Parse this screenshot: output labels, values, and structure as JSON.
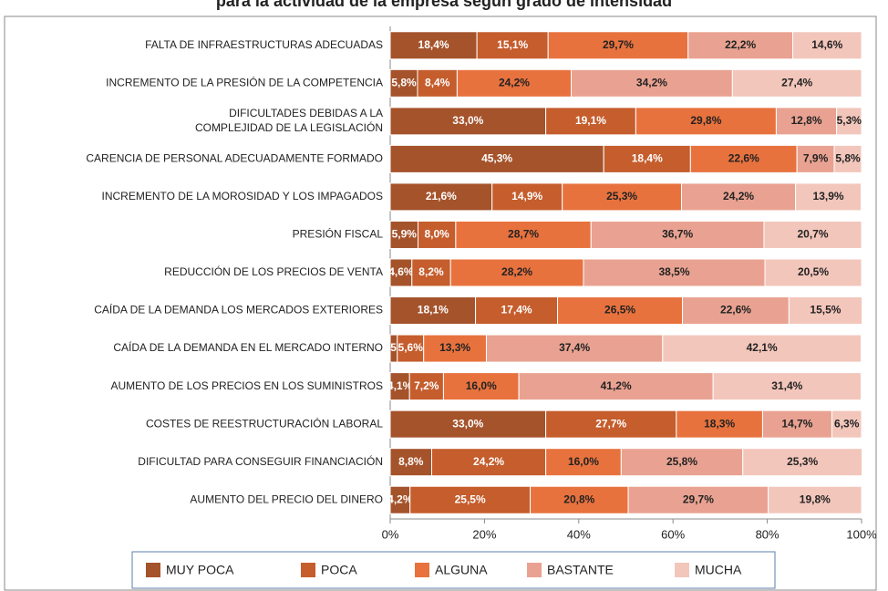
{
  "chart_data": {
    "type": "stacked-bar-horizontal",
    "title": "para la actividad de la empresa según grado de intensidad",
    "categories": [
      "FALTA DE INFRAESTRUCTURAS ADECUADAS",
      "INCREMENTO DE LA PRESIÓN DE LA COMPETENCIA",
      "DIFICULTADES DEBIDAS A LA\nCOMPLEJIDAD DE LA LEGISLACIÓN",
      "CARENCIA DE PERSONAL ADECUADAMENTE FORMADO",
      "INCREMENTO DE LA MOROSIDAD Y LOS IMPAGADOS",
      "PRESIÓN FISCAL",
      "REDUCCIÓN DE LOS PRECIOS DE VENTA",
      "CAÍDA DE LA DEMANDA LOS MERCADOS EXTERIORES",
      "CAÍDA DE LA DEMANDA EN EL MERCADO INTERNO",
      "AUMENTO DE LOS PRECIOS EN LOS SUMINISTROS",
      "COSTES DE REESTRUCTURACIÓN LABORAL",
      "DIFICULTAD PARA CONSEGUIR FINANCIACIÓN",
      "AUMENTO DEL PRECIO DEL DINERO"
    ],
    "series": [
      {
        "name": "MUY POCA",
        "color": "#A5532B",
        "label_color": "#ffffff",
        "values": [
          18.4,
          5.8,
          33.0,
          45.3,
          21.6,
          5.9,
          4.6,
          18.1,
          1.5,
          4.1,
          33.0,
          8.8,
          4.2
        ],
        "value_labels": [
          "18,4%",
          "5,8%",
          "33,0%",
          "45,3%",
          "21,6%",
          "5,9%",
          "4,6%",
          "18,1%",
          "1,5%",
          "4,1%",
          "33,0%",
          "8,8%",
          "4,2%"
        ]
      },
      {
        "name": "POCA",
        "color": "#C55D2D",
        "label_color": "#ffffff",
        "values": [
          15.1,
          8.4,
          19.1,
          18.4,
          14.9,
          8.0,
          8.2,
          17.4,
          5.6,
          7.2,
          27.7,
          24.2,
          25.5
        ],
        "value_labels": [
          "15,1%",
          "8,4%",
          "19,1%",
          "18,4%",
          "14,9%",
          "8,0%",
          "8,2%",
          "17,4%",
          "5,6%",
          "7,2%",
          "27,7%",
          "24,2%",
          "25,5%"
        ]
      },
      {
        "name": "ALGUNA",
        "color": "#E8723E",
        "label_color": "#222222",
        "values": [
          29.7,
          24.2,
          29.8,
          22.6,
          25.3,
          28.7,
          28.2,
          26.5,
          13.3,
          16.0,
          18.3,
          16.0,
          20.8
        ],
        "value_labels": [
          "29,7%",
          "24,2%",
          "29,8%",
          "22,6%",
          "25,3%",
          "28,7%",
          "28,2%",
          "26,5%",
          "13,3%",
          "16,0%",
          "18,3%",
          "16,0%",
          "20,8%"
        ]
      },
      {
        "name": "BASTANTE",
        "color": "#E9A291",
        "label_color": "#222222",
        "values": [
          22.2,
          34.2,
          12.8,
          7.9,
          24.2,
          36.7,
          38.5,
          22.6,
          37.4,
          41.2,
          14.7,
          25.8,
          29.7
        ],
        "value_labels": [
          "22,2%",
          "34,2%",
          "12,8%",
          "7,9%",
          "24,2%",
          "36,7%",
          "38,5%",
          "22,6%",
          "37,4%",
          "41,2%",
          "14,7%",
          "25,8%",
          "29,7%"
        ]
      },
      {
        "name": "MUCHA",
        "color": "#F3C6BB",
        "label_color": "#222222",
        "values": [
          14.6,
          27.4,
          5.3,
          5.8,
          13.9,
          20.7,
          20.5,
          15.5,
          42.1,
          31.4,
          6.3,
          25.3,
          19.8
        ],
        "value_labels": [
          "14,6%",
          "27,4%",
          "5,3%",
          "5,8%",
          "13,9%",
          "20,7%",
          "20,5%",
          "15,5%",
          "42,1%",
          "31,4%",
          "6,3%",
          "25,3%",
          "19,8%"
        ]
      }
    ],
    "xlim": [
      0,
      100
    ],
    "xticks": [
      {
        "value": 0,
        "label": "0%"
      },
      {
        "value": 20,
        "label": "20%"
      },
      {
        "value": 40,
        "label": "40%"
      },
      {
        "value": 60,
        "label": "60%"
      },
      {
        "value": 80,
        "label": "80%"
      },
      {
        "value": 100,
        "label": "100%"
      }
    ],
    "legend": "bottom"
  }
}
